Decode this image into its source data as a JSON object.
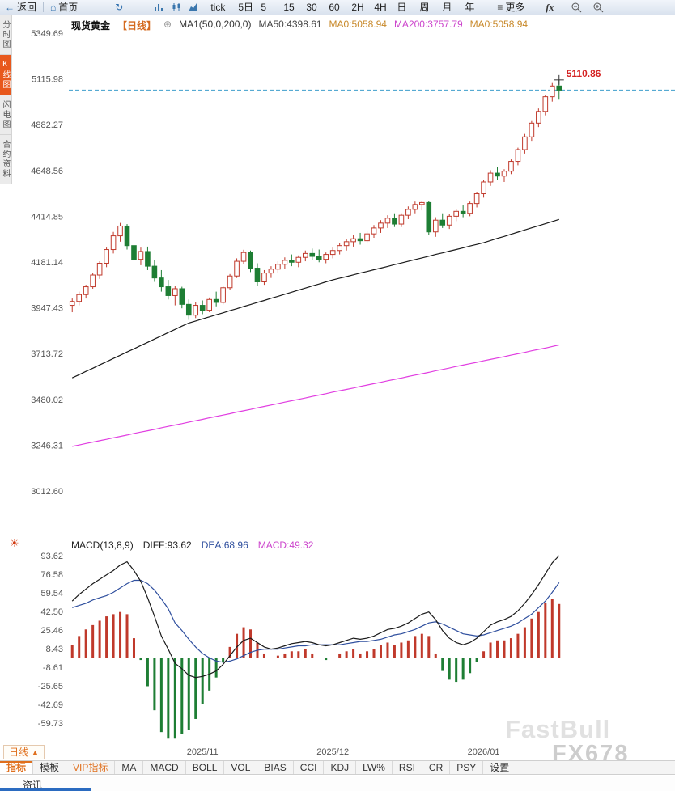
{
  "toolbar": {
    "back": "返回",
    "home": "首页",
    "periods": [
      "tick",
      "5日",
      "5",
      "15",
      "30",
      "60",
      "2H",
      "4H",
      "日",
      "周",
      "月",
      "年"
    ],
    "more": "更多",
    "fx": "fx"
  },
  "icons": {
    "back_arrow": "←",
    "home": "⌂",
    "refresh": "↻",
    "menu": "≡",
    "settings_sun": "☀",
    "add_circle": "⊕",
    "up_triangle": "▲"
  },
  "sidebar": {
    "items": [
      {
        "label": "分时图",
        "active": false
      },
      {
        "label": "K线图",
        "active": true
      },
      {
        "label": "闪电图",
        "active": false
      },
      {
        "label": "合约资料",
        "active": false
      }
    ]
  },
  "main_header": {
    "symbol": "现货黄金",
    "period": "【日线】",
    "ma_group": "MA1(50,0,200,0)",
    "ma50": "MA50:4398.61",
    "ma0_1": "MA0:5058.94",
    "ma200": "MA200:3757.79",
    "ma0_2": "MA0:5058.94"
  },
  "macd_header": {
    "title": "MACD(13,8,9)",
    "diff": "DIFF:93.62",
    "dea": "DEA:68.96",
    "macd": "MACD:49.32"
  },
  "bottom": {
    "period_tab": "日线",
    "tabs": [
      "指标",
      "模板",
      "VIP指标",
      "MA",
      "MACD",
      "BOLL",
      "VOL",
      "BIAS",
      "CCI",
      "KDJ",
      "LW%",
      "RSI",
      "CR",
      "PSY",
      "设置"
    ],
    "news_tab": "资讯"
  },
  "watermarks": {
    "primary": "FastBull",
    "secondary": "FX678"
  },
  "colors": {
    "up": "#c0392b",
    "down": "#1e7e34",
    "ma50": "#1a1a1a",
    "ma200": "#e13ee1",
    "diff": "#1a1a1a",
    "dea": "#2f4f9e",
    "dashed": "#3f9ecb",
    "high": "#d42222",
    "axis_text": "#555555",
    "accent": "#e0701e"
  },
  "chart_data": {
    "type": "candlestick",
    "symbol": "现货黄金",
    "period": "日线",
    "main": {
      "y_axis": [
        5349.69,
        5115.98,
        4882.27,
        4648.56,
        4414.85,
        4181.14,
        3947.43,
        3713.72,
        3480.02,
        3246.31,
        3012.6
      ],
      "last_price_line": 5058.94,
      "high_label": "5110.86",
      "candles": [
        [
          3960,
          3995,
          3925,
          3980
        ],
        [
          3980,
          4030,
          3960,
          4015
        ],
        [
          4015,
          4065,
          3995,
          4055
        ],
        [
          4055,
          4125,
          4045,
          4115
        ],
        [
          4115,
          4185,
          4095,
          4175
        ],
        [
          4175,
          4255,
          4155,
          4245
        ],
        [
          4245,
          4335,
          4225,
          4315
        ],
        [
          4315,
          4381,
          4285,
          4365
        ],
        [
          4365,
          4375,
          4245,
          4265
        ],
        [
          4265,
          4315,
          4175,
          4195
        ],
        [
          4195,
          4255,
          4165,
          4235
        ],
        [
          4235,
          4260,
          4140,
          4160
        ],
        [
          4160,
          4190,
          4080,
          4100
        ],
        [
          4100,
          4140,
          4030,
          4055
        ],
        [
          4055,
          4090,
          3990,
          4010
        ],
        [
          4010,
          4060,
          3960,
          4045
        ],
        [
          4045,
          4055,
          3945,
          3965
        ],
        [
          3965,
          3990,
          3886,
          3910
        ],
        [
          3910,
          3975,
          3895,
          3960
        ],
        [
          3960,
          3985,
          3915,
          3935
        ],
        [
          3935,
          4000,
          3925,
          3990
        ],
        [
          3990,
          4030,
          3955,
          3975
        ],
        [
          3975,
          4060,
          3965,
          4050
        ],
        [
          4050,
          4120,
          4040,
          4110
        ],
        [
          4110,
          4200,
          4100,
          4185
        ],
        [
          4185,
          4244,
          4170,
          4230
        ],
        [
          4230,
          4240,
          4130,
          4150
        ],
        [
          4150,
          4175,
          4060,
          4080
        ],
        [
          4080,
          4140,
          4065,
          4125
        ],
        [
          4125,
          4160,
          4100,
          4145
        ],
        [
          4145,
          4185,
          4125,
          4170
        ],
        [
          4170,
          4205,
          4145,
          4190
        ],
        [
          4190,
          4220,
          4160,
          4180
        ],
        [
          4180,
          4215,
          4155,
          4205
        ],
        [
          4205,
          4240,
          4185,
          4225
        ],
        [
          4225,
          4250,
          4190,
          4210
        ],
        [
          4210,
          4245,
          4180,
          4195
        ],
        [
          4195,
          4230,
          4175,
          4220
        ],
        [
          4220,
          4255,
          4200,
          4240
        ],
        [
          4240,
          4280,
          4220,
          4265
        ],
        [
          4265,
          4300,
          4240,
          4285
        ],
        [
          4285,
          4320,
          4260,
          4300
        ],
        [
          4300,
          4330,
          4270,
          4290
        ],
        [
          4290,
          4340,
          4275,
          4325
        ],
        [
          4325,
          4370,
          4305,
          4355
        ],
        [
          4355,
          4395,
          4330,
          4380
        ],
        [
          4380,
          4420,
          4355,
          4405
        ],
        [
          4405,
          4430,
          4360,
          4375
        ],
        [
          4375,
          4430,
          4360,
          4420
        ],
        [
          4420,
          4465,
          4400,
          4450
        ],
        [
          4450,
          4490,
          4430,
          4475
        ],
        [
          4475,
          4495,
          4445,
          4485
        ],
        [
          4485,
          4495,
          4320,
          4335
        ],
        [
          4335,
          4410,
          4310,
          4395
        ],
        [
          4395,
          4430,
          4355,
          4370
        ],
        [
          4370,
          4425,
          4350,
          4415
        ],
        [
          4415,
          4450,
          4390,
          4440
        ],
        [
          4440,
          4470,
          4410,
          4430
        ],
        [
          4430,
          4490,
          4415,
          4480
        ],
        [
          4480,
          4540,
          4460,
          4530
        ],
        [
          4530,
          4600,
          4510,
          4590
        ],
        [
          4590,
          4650,
          4570,
          4635
        ],
        [
          4635,
          4665,
          4600,
          4620
        ],
        [
          4620,
          4655,
          4590,
          4645
        ],
        [
          4645,
          4705,
          4630,
          4695
        ],
        [
          4695,
          4765,
          4675,
          4755
        ],
        [
          4755,
          4835,
          4735,
          4820
        ],
        [
          4820,
          4905,
          4800,
          4890
        ],
        [
          4890,
          4965,
          4870,
          4950
        ],
        [
          4950,
          5035,
          4930,
          5025
        ],
        [
          5025,
          5095,
          5000,
          5080
        ],
        [
          5080,
          5110.86,
          5010,
          5058.94
        ]
      ],
      "ma50": [
        3590,
        3606,
        3623,
        3639,
        3656,
        3672,
        3689,
        3705,
        3722,
        3738,
        3755,
        3771,
        3788,
        3804,
        3821,
        3837,
        3854,
        3870,
        3880,
        3891,
        3901,
        3912,
        3922,
        3933,
        3943,
        3954,
        3964,
        3975,
        3985,
        3996,
        4006,
        4017,
        4027,
        4038,
        4048,
        4059,
        4069,
        4080,
        4090,
        4099,
        4107,
        4116,
        4125,
        4133,
        4142,
        4150,
        4159,
        4168,
        4176,
        4185,
        4194,
        4202,
        4211,
        4220,
        4228,
        4237,
        4245,
        4254,
        4263,
        4271,
        4280,
        4291,
        4302,
        4312,
        4323,
        4334,
        4345,
        4356,
        4366,
        4377,
        4388,
        4398.61
      ],
      "ma200": [
        3240,
        3247,
        3255,
        3262,
        3269,
        3276,
        3284,
        3291,
        3298,
        3306,
        3313,
        3320,
        3327,
        3335,
        3342,
        3349,
        3356,
        3364,
        3371,
        3378,
        3386,
        3393,
        3400,
        3407,
        3415,
        3422,
        3429,
        3437,
        3444,
        3451,
        3458,
        3466,
        3473,
        3480,
        3487,
        3495,
        3502,
        3509,
        3517,
        3524,
        3531,
        3538,
        3546,
        3553,
        3560,
        3567,
        3575,
        3582,
        3589,
        3597,
        3604,
        3611,
        3618,
        3626,
        3633,
        3640,
        3648,
        3655,
        3662,
        3669,
        3677,
        3684,
        3691,
        3698,
        3706,
        3713,
        3720,
        3728,
        3735,
        3742,
        3750,
        3757.79
      ]
    },
    "macd": {
      "y_axis": [
        93.62,
        76.58,
        59.54,
        42.5,
        25.46,
        8.43,
        -8.61,
        -25.65,
        -42.69,
        -59.73
      ],
      "diff": [
        52,
        58,
        63,
        68,
        72,
        76,
        80,
        85,
        88,
        80,
        70,
        55,
        38,
        20,
        8,
        -5,
        -10,
        -16,
        -18,
        -17,
        -15,
        -12,
        -6,
        2,
        10,
        16,
        18,
        14,
        10,
        8,
        9,
        11,
        13,
        14,
        15,
        14,
        12,
        11,
        12,
        14,
        16,
        18,
        17,
        18,
        20,
        23,
        26,
        27,
        29,
        32,
        36,
        40,
        42,
        35,
        25,
        18,
        14,
        12,
        14,
        18,
        24,
        30,
        33,
        35,
        38,
        43,
        50,
        58,
        67,
        77,
        87,
        93.62
      ],
      "dea": [
        46,
        48,
        50,
        53,
        55,
        57,
        60,
        64,
        68,
        71,
        71,
        68,
        62,
        54,
        45,
        32,
        25,
        17,
        10,
        4,
        0,
        -3,
        -4,
        -3,
        -1,
        2,
        5,
        7,
        8,
        8,
        8,
        9,
        10,
        11,
        11,
        12,
        12,
        12,
        12,
        12,
        13,
        14,
        15,
        15,
        16,
        17,
        19,
        21,
        22,
        24,
        26,
        29,
        32,
        33,
        31,
        28,
        25,
        22,
        21,
        20,
        21,
        23,
        25,
        27,
        29,
        32,
        36,
        40,
        46,
        52,
        60,
        68.96
      ],
      "hist": [
        12,
        20,
        26,
        30,
        34,
        38,
        40,
        42,
        40,
        18,
        -2,
        -26,
        -48,
        -68,
        -74,
        -74,
        -70,
        -66,
        -56,
        -42,
        -30,
        -18,
        -4,
        10,
        22,
        28,
        26,
        14,
        4,
        0,
        2,
        4,
        6,
        6,
        8,
        4,
        0,
        -2,
        0,
        4,
        6,
        8,
        4,
        6,
        8,
        12,
        14,
        12,
        14,
        16,
        20,
        22,
        20,
        4,
        -12,
        -20,
        -22,
        -20,
        -14,
        -4,
        6,
        14,
        16,
        16,
        18,
        22,
        28,
        36,
        42,
        50,
        54,
        49.32
      ]
    },
    "x_labels": [
      {
        "label": "2025/11",
        "index": 19
      },
      {
        "label": "2025/12",
        "index": 38
      },
      {
        "label": "2026/01",
        "index": 60
      }
    ]
  }
}
